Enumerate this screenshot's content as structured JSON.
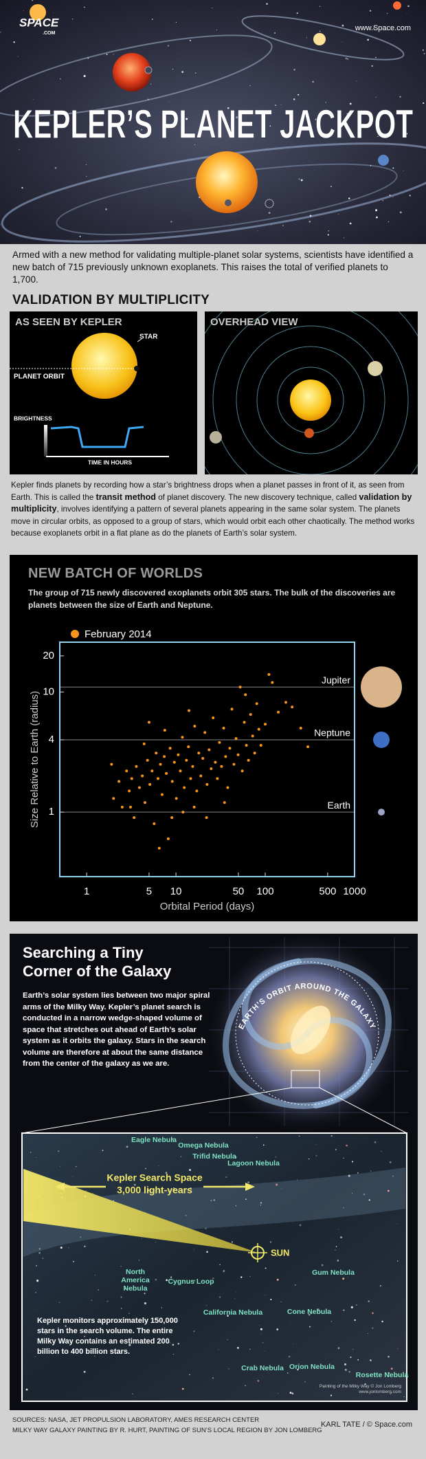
{
  "header": {
    "logo": "SPACE",
    "logo_sub": ".COM",
    "site": "www.Space.com",
    "title": "KEPLER’S PLANET JACKPOT"
  },
  "intro": "Armed with a new method for validating multiple-planet solar systems, scientists have identified a new batch of 715 previously unknown exoplanets. This raises the total of verified planets to 1,700.",
  "validation": {
    "title": "VALIDATION BY MULTIPLICITY",
    "kepler_view": {
      "title": "AS SEEN BY KEPLER",
      "star": "STAR",
      "orbit": "PLANET ORBIT",
      "brightness": "BRIGHTNESS",
      "time": "TIME IN HOURS"
    },
    "overhead_view": {
      "title": "OVERHEAD VIEW"
    },
    "paragraph": [
      {
        "text": "Kepler finds planets by recording how a star’s brightness drops when a planet passes in front of it, as seen from Earth. This is called the ",
        "bold": false
      },
      {
        "text": "transit method",
        "bold": true
      },
      {
        "text": " of planet discovery. The new discovery technique, called ",
        "bold": false
      },
      {
        "text": "validation by multiplicity",
        "bold": true
      },
      {
        "text": ", involves identifying a pattern of several planets appearing in the same solar system. The planets move in circular orbits, as opposed to a group of stars, which would orbit each other chaotically. The method works because exoplanets orbit in a flat plane as do the planets of Earth’s solar system.",
        "bold": false
      }
    ]
  },
  "chart_data": {
    "type": "scatter",
    "title": "NEW BATCH OF WORLDS",
    "subtitle": "The group of 715 newly discovered exoplanets orbit 305 stars. The bulk of the discoveries are planets between the size of Earth and Neptune.",
    "x_label": "Orbital Period (days)",
    "y_label": "Size Relative to Earth (radius)",
    "xlog": true,
    "ylog": true,
    "xlim": [
      0.5,
      1000
    ],
    "ylim": [
      0.29,
      26
    ],
    "xticks": [
      1,
      5,
      10,
      50,
      100,
      500,
      1000
    ],
    "yticks": [
      1,
      4,
      10,
      20
    ],
    "legend": "top-left",
    "reference_lines": [
      {
        "value": 11,
        "label": "Jupiter",
        "color": "#d9b48a"
      },
      {
        "value": 4,
        "label": "Neptune",
        "color": "#3f6fc4"
      },
      {
        "value": 1,
        "label": "Earth",
        "color": "#9aa6c4"
      }
    ],
    "series": [
      {
        "name": "February 2014",
        "color": "#f7941d",
        "x": [
          2.0,
          2.3,
          2.5,
          2.8,
          3.0,
          3.2,
          3.4,
          3.6,
          3.9,
          4.2,
          4.5,
          4.8,
          5.1,
          5.4,
          5.7,
          6.0,
          6.3,
          6.7,
          7.0,
          7.4,
          7.8,
          8.2,
          8.6,
          9.1,
          9.6,
          10.1,
          10.6,
          11.2,
          11.8,
          12.4,
          13.1,
          13.8,
          14.6,
          15.4,
          16.2,
          17.1,
          18.0,
          19.0,
          20.0,
          21.1,
          22.3,
          23.5,
          24.8,
          26.1,
          27.6,
          29.1,
          30.7,
          32.4,
          34.2,
          36.0,
          38.0,
          40.1,
          42.3,
          44.6,
          47.1,
          49.7,
          52.4,
          55.3,
          58.3,
          61.5,
          64.9,
          68.5,
          72.2,
          76.2,
          80.4,
          84.8,
          89.5,
          100,
          110,
          120,
          140,
          170,
          200,
          250,
          300,
          1.9,
          3.1,
          4.4,
          6.5,
          9.0,
          12.0,
          16.0,
          22.0,
          35.0,
          7.5,
          5.0,
          14.0,
          60.0
        ],
        "values": [
          1.3,
          1.8,
          1.1,
          2.2,
          1.5,
          1.9,
          0.9,
          2.4,
          1.6,
          2.0,
          1.2,
          2.7,
          1.7,
          2.2,
          0.8,
          3.1,
          1.9,
          2.5,
          1.4,
          2.9,
          2.1,
          0.6,
          3.4,
          1.8,
          2.6,
          1.3,
          3.0,
          2.2,
          4.2,
          1.6,
          2.7,
          3.5,
          1.9,
          2.4,
          5.2,
          1.5,
          3.1,
          2.0,
          2.8,
          4.6,
          1.7,
          3.3,
          2.3,
          6.1,
          2.6,
          1.9,
          3.8,
          2.4,
          5.0,
          2.9,
          1.6,
          3.4,
          7.2,
          2.5,
          4.1,
          3.0,
          11.0,
          2.2,
          5.6,
          3.6,
          2.7,
          6.5,
          4.3,
          3.1,
          8.0,
          4.9,
          3.6,
          5.4,
          14,
          12,
          6.8,
          8.2,
          7.5,
          5.0,
          3.5,
          2.5,
          1.1,
          3.7,
          0.5,
          0.9,
          1.0,
          1.1,
          0.9,
          1.2,
          4.8,
          5.6,
          7.0,
          9.5
        ]
      }
    ]
  },
  "galaxy": {
    "title": [
      "Searching a Tiny",
      "Corner of the Galaxy"
    ],
    "paragraph": "Earth’s solar system lies between two major spiral arms of the Milky Way. Kepler’s planet search is conducted in a narrow wedge-shaped volume of space that stretches out ahead of Earth’s solar system as it orbits the galaxy. Stars in the search volume are therefore at about the same distance from the center of the galaxy as we are.",
    "orbit_label": "EARTH’S ORBIT AROUND THE GALAXY",
    "search_space": "Kepler Search Space",
    "distance": "3,000 light-years",
    "sun": "SUN",
    "nebulae": [
      "Eagle Nebula",
      "Omega Nebula",
      "Trifid Nebula",
      "Lagoon Nebula",
      "North America Nebula",
      "Cygnus Loop",
      "Gum Nebula",
      "California Nebula",
      "Cone Nebula",
      "Crab Nebula",
      "Orion Nebula",
      "Rosette Nebula"
    ],
    "inset_paragraph": "Kepler monitors approximately 150,000 stars in the search volume. The entire Milky Way contains an estimated 200 billion to 400 billion stars.",
    "credit": "Painting of the Milky Way © Jon Lomberg www.jonlomberg.com"
  },
  "footer": {
    "sources": [
      "SOURCES: NASA, JET PROPULSION LABORATORY, AMES RESEARCH CENTER",
      "MILKY WAY GALAXY PAINTING BY R. HURT, PAINTING OF SUN’S LOCAL REGION BY JON LOMBERG"
    ],
    "credit": "KARL TATE / © Space.com"
  }
}
